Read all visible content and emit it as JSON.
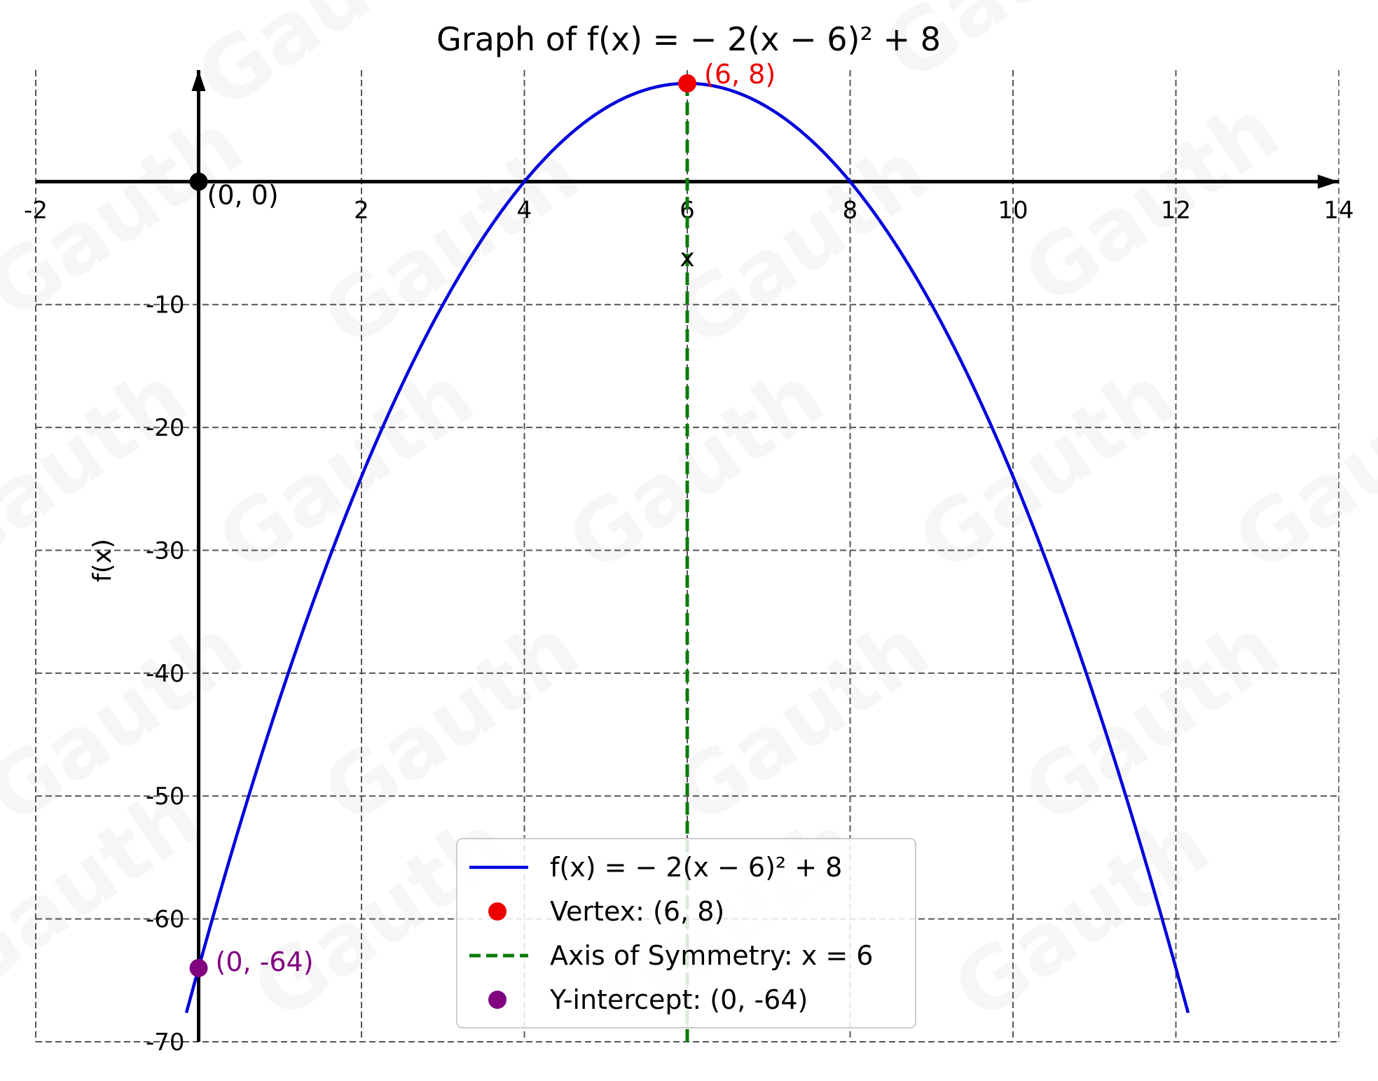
{
  "chart_data": {
    "type": "line",
    "title": "Graph of f(x) = − 2(x − 6)² + 8",
    "xlabel": "x",
    "ylabel": "f(x)",
    "xlim": [
      -2,
      14
    ],
    "ylim": [
      -70,
      8
    ],
    "grid": true,
    "legend_position": "bottom-center",
    "watermark": "Gauth",
    "x_ticks": [
      {
        "value": -2,
        "label": "-2"
      },
      {
        "value": 2,
        "label": "2"
      },
      {
        "value": 4,
        "label": "4"
      },
      {
        "value": 6,
        "label": "6"
      },
      {
        "value": 8,
        "label": "8"
      },
      {
        "value": 10,
        "label": "10"
      },
      {
        "value": 12,
        "label": "12"
      },
      {
        "value": 14,
        "label": "14"
      }
    ],
    "y_ticks": [
      {
        "value": -10,
        "label": "-10"
      },
      {
        "value": -20,
        "label": "-20"
      },
      {
        "value": -30,
        "label": "-30"
      },
      {
        "value": -40,
        "label": "-40"
      },
      {
        "value": -50,
        "label": "-50"
      },
      {
        "value": -60,
        "label": "-60"
      },
      {
        "value": -70,
        "label": "-70"
      }
    ],
    "series": [
      {
        "name": "f(x) = − 2(x − 6)² + 8",
        "kind": "line",
        "color": "#0000dd",
        "function": {
          "a": -2,
          "h": 6,
          "k": 8
        },
        "x_range": [
          -0.15,
          12.15
        ]
      },
      {
        "name": "Vertex: (6, 8)",
        "kind": "point",
        "color": "#ee0000",
        "x": 6,
        "y": 8,
        "annotation": "(6, 8)"
      },
      {
        "name": "Axis of Symmetry: x = 6",
        "kind": "vline",
        "color": "#0a7a0a",
        "x": 6
      },
      {
        "name": "Y-intercept: (0, -64)",
        "kind": "point",
        "color": "#800080",
        "x": 0,
        "y": -64,
        "annotation": "(0, -64)"
      }
    ],
    "origin": {
      "x": 0,
      "y": 0,
      "annotation": "(0, 0)",
      "color": "#000000"
    }
  }
}
